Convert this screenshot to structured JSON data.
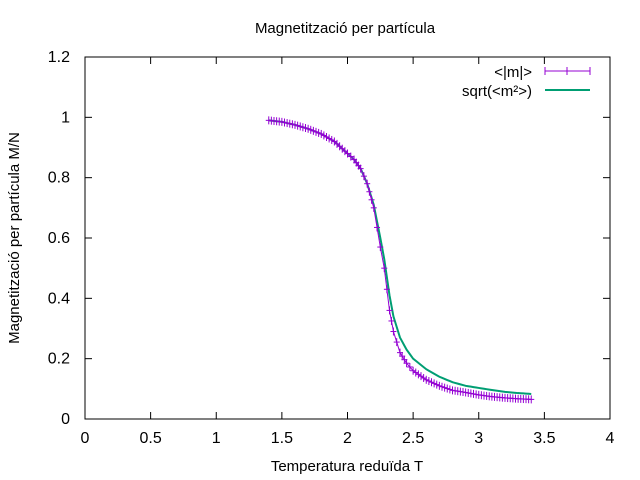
{
  "chart_data": {
    "type": "line",
    "title": "Magnetització per partícula",
    "xlabel": "Temperatura reduïda T",
    "ylabel": "Magnetització per partícula M/N",
    "xlim": [
      0,
      4
    ],
    "ylim": [
      0,
      1.2
    ],
    "x_ticks": [
      0,
      0.5,
      1,
      1.5,
      2,
      2.5,
      3,
      3.5,
      4
    ],
    "y_ticks": [
      0,
      0.2,
      0.4,
      0.6,
      0.8,
      1,
      1.2
    ],
    "x_tick_labels": [
      "0",
      "0.5",
      "1",
      "1.5",
      "2",
      "2.5",
      "3",
      "3.5",
      "4"
    ],
    "y_tick_labels": [
      "0",
      "0.2",
      "0.4",
      "0.6",
      "0.8",
      "1",
      "1.2"
    ],
    "grid": false,
    "legend_position": "top-right",
    "series": [
      {
        "name": "<|m|>",
        "color": "#9400d3",
        "style": "errorbars-points",
        "x": [
          1.4,
          1.5,
          1.6,
          1.7,
          1.8,
          1.9,
          2.0,
          2.05,
          2.1,
          2.15,
          2.2,
          2.25,
          2.28,
          2.3,
          2.32,
          2.35,
          2.4,
          2.45,
          2.5,
          2.6,
          2.7,
          2.8,
          2.9,
          3.0,
          3.1,
          3.2,
          3.3,
          3.4
        ],
        "y": [
          0.99,
          0.985,
          0.975,
          0.962,
          0.945,
          0.92,
          0.88,
          0.86,
          0.83,
          0.78,
          0.7,
          0.57,
          0.5,
          0.43,
          0.36,
          0.29,
          0.22,
          0.185,
          0.16,
          0.13,
          0.11,
          0.095,
          0.088,
          0.08,
          0.074,
          0.07,
          0.067,
          0.065
        ]
      },
      {
        "name": "sqrt(<m²>)",
        "color": "#009e73",
        "style": "line",
        "x": [
          1.4,
          1.5,
          1.6,
          1.7,
          1.8,
          1.9,
          2.0,
          2.05,
          2.1,
          2.15,
          2.2,
          2.25,
          2.28,
          2.3,
          2.32,
          2.35,
          2.4,
          2.45,
          2.5,
          2.6,
          2.7,
          2.8,
          2.9,
          3.0,
          3.1,
          3.2,
          3.3,
          3.4
        ],
        "y": [
          0.99,
          0.985,
          0.975,
          0.962,
          0.945,
          0.92,
          0.88,
          0.86,
          0.83,
          0.78,
          0.71,
          0.6,
          0.53,
          0.47,
          0.41,
          0.34,
          0.27,
          0.23,
          0.2,
          0.165,
          0.14,
          0.122,
          0.11,
          0.103,
          0.096,
          0.09,
          0.086,
          0.083
        ]
      }
    ]
  }
}
